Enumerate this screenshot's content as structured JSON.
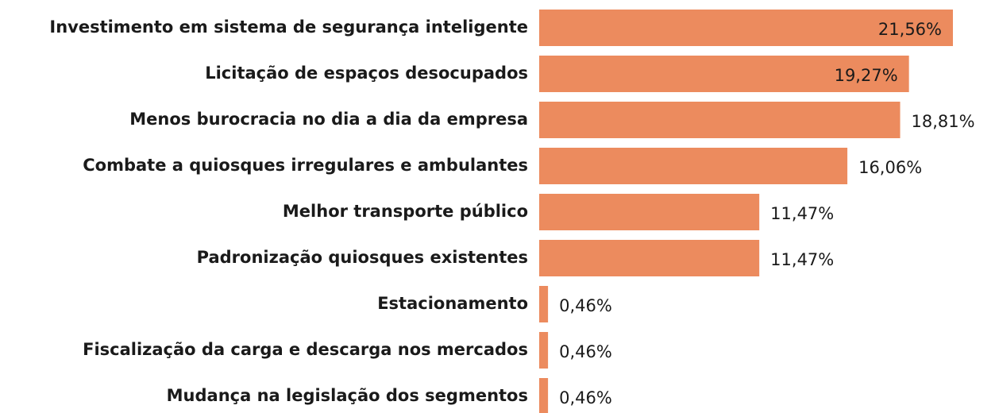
{
  "chart_data": {
    "type": "bar",
    "orientation": "horizontal",
    "color": "#ec8b5e",
    "categories": [
      "Investimento em sistema de segurança inteligente",
      "Licitação de espaços desocupados",
      "Menos burocracia no dia a dia da empresa",
      "Combate a quiosques irregulares e ambulantes",
      "Melhor transporte público",
      "Padronização quiosques existentes",
      "Estacionamento",
      "Fiscalização da carga e descarga nos mercados",
      "Mudança na legislação dos segmentos"
    ],
    "values": [
      21.56,
      19.27,
      18.81,
      16.06,
      11.47,
      11.47,
      0.46,
      0.46,
      0.46
    ],
    "value_labels": [
      "21,56%",
      "19,27%",
      "18,81%",
      "16,06%",
      "11,47%",
      "11,47%",
      "0,46%",
      "0,46%",
      "0,46%"
    ]
  }
}
